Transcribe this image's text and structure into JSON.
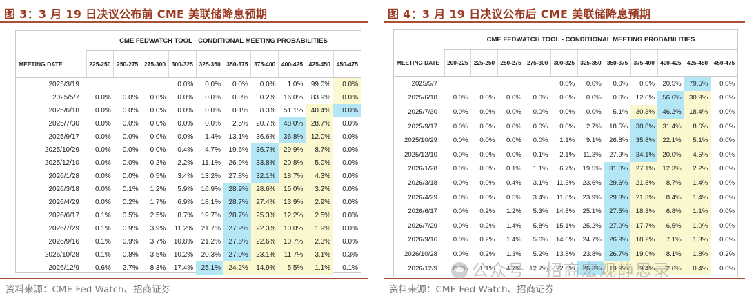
{
  "figures": [
    {
      "title": "图 3：3 月 19 日决议公布前 CME 美联储降息预期",
      "source": "资料来源：CME Fed Watch、招商证券",
      "table_title": "CME FEDWATCH TOOL - CONDITIONAL MEETING PROBABILITIES",
      "header_date": "MEETING DATE",
      "columns": [
        "225-250",
        "250-275",
        "275-300",
        "300-325",
        "325-350",
        "350-375",
        "375-400",
        "400-425",
        "425-450",
        "450-475"
      ],
      "rows": [
        {
          "date": "2025/3/19",
          "cells": [
            "",
            "",
            "",
            "0.0%",
            "0.0%",
            "0.0%",
            "0.0%",
            "1.0%",
            "99.0%",
            "0.0%"
          ]
        },
        {
          "date": "2025/5/7",
          "cells": [
            "0.0%",
            "0.0%",
            "0.0%",
            "0.0%",
            "0.0%",
            "0.0%",
            "0.2%",
            "16.0%",
            "83.9%",
            "0.0%"
          ]
        },
        {
          "date": "2025/6/18",
          "cells": [
            "0.0%",
            "0.0%",
            "0.0%",
            "0.0%",
            "0.0%",
            "0.1%",
            "8.3%",
            "51.1%",
            "40.4%",
            "0.0%"
          ]
        },
        {
          "date": "2025/7/30",
          "cells": [
            "0.0%",
            "0.0%",
            "0.0%",
            "0.0%",
            "0.0%",
            "2.5%",
            "20.7%",
            "48.0%",
            "28.7%",
            "0.0%"
          ]
        },
        {
          "date": "2025/9/17",
          "cells": [
            "0.0%",
            "0.0%",
            "0.0%",
            "0.0%",
            "1.4%",
            "13.1%",
            "36.6%",
            "36.8%",
            "12.0%",
            "0.0%"
          ]
        },
        {
          "date": "2025/10/29",
          "cells": [
            "0.0%",
            "0.0%",
            "0.0%",
            "0.4%",
            "4.7%",
            "19.6%",
            "36.7%",
            "29.9%",
            "8.7%",
            "0.0%"
          ]
        },
        {
          "date": "2025/12/10",
          "cells": [
            "0.0%",
            "0.0%",
            "0.2%",
            "2.2%",
            "11.1%",
            "26.9%",
            "33.8%",
            "20.8%",
            "5.0%",
            "0.0%"
          ]
        },
        {
          "date": "2026/1/28",
          "cells": [
            "0.0%",
            "0.0%",
            "0.5%",
            "3.4%",
            "13.2%",
            "27.8%",
            "32.1%",
            "18.7%",
            "4.3%",
            "0.0%"
          ]
        },
        {
          "date": "2026/3/18",
          "cells": [
            "0.0%",
            "0.1%",
            "1.2%",
            "5.9%",
            "16.9%",
            "28.9%",
            "28.6%",
            "15.0%",
            "3.2%",
            "0.0%"
          ]
        },
        {
          "date": "2026/4/29",
          "cells": [
            "0.0%",
            "0.2%",
            "1.7%",
            "6.9%",
            "18.1%",
            "28.7%",
            "27.4%",
            "13.9%",
            "2.9%",
            "0.0%"
          ]
        },
        {
          "date": "2026/6/17",
          "cells": [
            "0.1%",
            "0.5%",
            "2.5%",
            "8.7%",
            "19.7%",
            "28.7%",
            "25.3%",
            "12.2%",
            "2.5%",
            "0.0%"
          ]
        },
        {
          "date": "2026/7/29",
          "cells": [
            "0.1%",
            "0.9%",
            "3.9%",
            "11.2%",
            "21.7%",
            "27.9%",
            "22.3%",
            "10.0%",
            "1.9%",
            "0.0%"
          ]
        },
        {
          "date": "2026/9/16",
          "cells": [
            "0.1%",
            "0.9%",
            "3.7%",
            "10.8%",
            "21.2%",
            "27.6%",
            "22.6%",
            "10.7%",
            "2.3%",
            "0.0%"
          ]
        },
        {
          "date": "2026/10/28",
          "cells": [
            "0.1%",
            "0.8%",
            "3.5%",
            "10.2%",
            "20.3%",
            "27.0%",
            "23.1%",
            "11.7%",
            "3.1%",
            "0.3%"
          ]
        },
        {
          "date": "2026/12/9",
          "cells": [
            "0.6%",
            "2.7%",
            "8.3%",
            "17.4%",
            "25.1%",
            "24.2%",
            "14.9%",
            "5.5%",
            "1.1%",
            "0.1%"
          ]
        }
      ],
      "highlights": [
        "---------Y",
        "---------Y",
        "--------YB",
        "-------BY-",
        "-------BY-",
        "------BYY-",
        "------BYY-",
        "------BYY-",
        "-----BYYY-",
        "-----BYYY-",
        "-----BYYY-",
        "-----BYYY-",
        "-----BYYY-",
        "-----BYYY-",
        "----BYYYY-"
      ]
    },
    {
      "title": "图 4：3 月 19 日决议公布后 CME 美联储降息预期",
      "source": "资料来源：CME Fed Watch、招商证券",
      "table_title": "CME FEDWATCH TOOL - CONDITIONAL MEETING PROBABILITIES",
      "header_date": "MEETING DATE",
      "columns": [
        "200-225",
        "225-250",
        "250-275",
        "275-300",
        "300-325",
        "325-350",
        "350-375",
        "375-400",
        "400-425",
        "425-450",
        "450-475"
      ],
      "rows": [
        {
          "date": "2025/5/7",
          "cells": [
            "",
            "",
            "",
            "",
            "0.0%",
            "0.0%",
            "0.0%",
            "0.0%",
            "20.5%",
            "79.5%",
            "0.0%"
          ]
        },
        {
          "date": "2025/6/18",
          "cells": [
            "0.0%",
            "0.0%",
            "0.0%",
            "0.0%",
            "0.0%",
            "0.0%",
            "0.0%",
            "12.6%",
            "56.6%",
            "30.9%",
            "0.0%"
          ]
        },
        {
          "date": "2025/7/30",
          "cells": [
            "0.0%",
            "0.0%",
            "0.0%",
            "0.0%",
            "0.0%",
            "0.0%",
            "5.1%",
            "30.3%",
            "46.2%",
            "18.4%",
            "0.0%"
          ]
        },
        {
          "date": "2025/9/17",
          "cells": [
            "0.0%",
            "0.0%",
            "0.0%",
            "0.0%",
            "0.0%",
            "2.7%",
            "18.5%",
            "38.8%",
            "31.4%",
            "8.6%",
            "0.0%"
          ]
        },
        {
          "date": "2025/10/29",
          "cells": [
            "0.0%",
            "0.0%",
            "0.0%",
            "0.0%",
            "1.1%",
            "9.1%",
            "26.8%",
            "35.8%",
            "22.1%",
            "5.1%",
            "0.0%"
          ]
        },
        {
          "date": "2025/12/10",
          "cells": [
            "0.0%",
            "0.0%",
            "0.0%",
            "0.1%",
            "2.1%",
            "11.3%",
            "27.9%",
            "34.1%",
            "20.0%",
            "4.5%",
            "0.0%"
          ]
        },
        {
          "date": "2026/1/28",
          "cells": [
            "0.0%",
            "0.0%",
            "0.1%",
            "1.1%",
            "6.7%",
            "19.5%",
            "31.0%",
            "27.1%",
            "12.3%",
            "2.2%",
            "0.0%"
          ]
        },
        {
          "date": "2026/3/18",
          "cells": [
            "0.0%",
            "0.0%",
            "0.4%",
            "3.1%",
            "11.3%",
            "23.6%",
            "29.6%",
            "21.8%",
            "8.7%",
            "1.4%",
            "0.0%"
          ]
        },
        {
          "date": "2026/4/29",
          "cells": [
            "0.0%",
            "0.0%",
            "0.5%",
            "3.4%",
            "11.8%",
            "23.9%",
            "29.3%",
            "21.3%",
            "8.4%",
            "1.4%",
            "0.0%"
          ]
        },
        {
          "date": "2026/6/17",
          "cells": [
            "0.0%",
            "0.2%",
            "1.2%",
            "5.3%",
            "14.5%",
            "25.1%",
            "27.5%",
            "18.3%",
            "6.8%",
            "1.1%",
            "0.0%"
          ]
        },
        {
          "date": "2026/7/29",
          "cells": [
            "0.0%",
            "0.2%",
            "1.4%",
            "5.8%",
            "15.1%",
            "25.2%",
            "27.0%",
            "17.7%",
            "6.5%",
            "1.0%",
            "0.0%"
          ]
        },
        {
          "date": "2026/9/16",
          "cells": [
            "0.0%",
            "0.2%",
            "1.4%",
            "5.6%",
            "14.6%",
            "24.7%",
            "26.9%",
            "18.2%",
            "7.1%",
            "1.3%",
            "0.0%"
          ]
        },
        {
          "date": "2026/10/28",
          "cells": [
            "0.0%",
            "0.2%",
            "1.3%",
            "5.2%",
            "13.8%",
            "23.8%",
            "26.7%",
            "19.0%",
            "8.1%",
            "1.8%",
            "0.2%"
          ]
        },
        {
          "date": "2026/12/9",
          "cells": [
            "0.2%",
            "1.1%",
            "4.7%",
            "12.7%",
            "22.6%",
            "26.3%",
            "19.9%",
            "9.4%",
            "2.6%",
            "0.4%",
            "0.0%"
          ]
        }
      ],
      "highlights": [
        "---------B-",
        "--------BY-",
        "-------YBY-",
        "-------BYY-",
        "-------BYY-",
        "-------BYY-",
        "------BYYY-",
        "------BYYY-",
        "------BYYY-",
        "------BYYY-",
        "------BYYY-",
        "------BYYY-",
        "------BYYY-",
        "-----BYYYY-"
      ]
    }
  ],
  "watermark": "公众号 · 招商宏观静思录"
}
